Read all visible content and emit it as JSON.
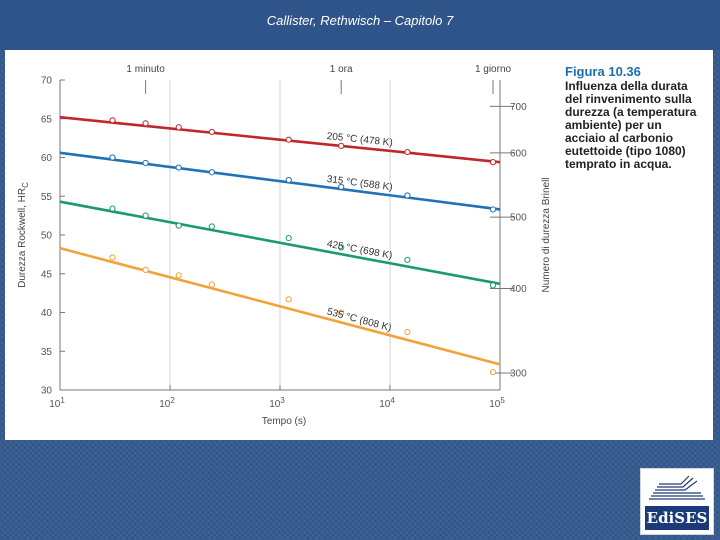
{
  "slide": {
    "title": "Callister, Rethwisch – Capitolo 7",
    "logo_text": "EdiSES"
  },
  "caption": {
    "number": "Figura 10.36",
    "text": "Influenza della durata del rinvenimento sulla durezza (a temperatura ambiente) per un acciaio al carbonio eutettoide (tipo 1080) temprato in acqua."
  },
  "colors": {
    "red": "#c0272d",
    "blue": "#2171b5",
    "green": "#1a9a70",
    "orange": "#f2a23a",
    "axis": "#777777",
    "grid": "#c8c8c8"
  },
  "chart_data": {
    "type": "line",
    "x_scale": "log",
    "xlim": [
      10,
      100000
    ],
    "ylim": [
      30,
      70
    ],
    "xlabel": "Tempo (s)",
    "ylabel": "Durezza Rockwell, HR",
    "ylabel_sub": "C",
    "y2label": "Numero di durezza Brinell",
    "x_tick_bases": [
      "10",
      "10",
      "10",
      "10",
      "10"
    ],
    "x_tick_exps": [
      "1",
      "2",
      "3",
      "4",
      "5"
    ],
    "x_tick_values": [
      10,
      100,
      1000,
      10000,
      100000
    ],
    "y_ticks": [
      30,
      35,
      40,
      45,
      50,
      55,
      60,
      65,
      70
    ],
    "y_tick_labels": [
      "30",
      "35",
      "40",
      "45",
      "50",
      "55",
      "60",
      "65",
      "70"
    ],
    "y2_ticks": [
      {
        "label": "300",
        "hrc": 32.2
      },
      {
        "label": "400",
        "hrc": 43.1
      },
      {
        "label": "500",
        "hrc": 52.3
      },
      {
        "label": "600",
        "hrc": 60.6
      },
      {
        "label": "700",
        "hrc": 66.6
      }
    ],
    "top_markers": [
      {
        "label": "1 minuto",
        "x": 60
      },
      {
        "label": "1 ora",
        "x": 3600
      },
      {
        "label": "1 giorno",
        "x": 86400
      }
    ],
    "series": [
      {
        "name": "205 °C (478 K)",
        "color_key": "red",
        "line": [
          [
            10,
            65.2
          ],
          [
            100000,
            59.4
          ]
        ],
        "points": [
          [
            30,
            64.8
          ],
          [
            60,
            64.4
          ],
          [
            120,
            63.9
          ],
          [
            240,
            63.3
          ],
          [
            1200,
            62.3
          ],
          [
            3600,
            61.5
          ],
          [
            14400,
            60.7
          ],
          [
            86400,
            59.4
          ]
        ]
      },
      {
        "name": "315 °C (588 K)",
        "color_key": "blue",
        "line": [
          [
            10,
            60.6
          ],
          [
            100000,
            53.3
          ]
        ],
        "points": [
          [
            30,
            60.0
          ],
          [
            60,
            59.3
          ],
          [
            120,
            58.7
          ],
          [
            240,
            58.1
          ],
          [
            1200,
            57.1
          ],
          [
            3600,
            56.2
          ],
          [
            14400,
            55.1
          ],
          [
            86400,
            53.3
          ]
        ]
      },
      {
        "name": "425 °C (698 K)",
        "color_key": "green",
        "line": [
          [
            10,
            54.3
          ],
          [
            100000,
            43.7
          ]
        ],
        "points": [
          [
            30,
            53.4
          ],
          [
            60,
            52.5
          ],
          [
            120,
            51.2
          ],
          [
            240,
            51.1
          ],
          [
            1200,
            49.6
          ],
          [
            3600,
            48.4
          ],
          [
            14400,
            46.8
          ],
          [
            86400,
            43.5
          ]
        ]
      },
      {
        "name": "535 °C (808 K)",
        "color_key": "orange",
        "line": [
          [
            10,
            48.3
          ],
          [
            100000,
            33.3
          ]
        ],
        "points": [
          [
            30,
            47.1
          ],
          [
            60,
            45.5
          ],
          [
            120,
            44.8
          ],
          [
            240,
            43.6
          ],
          [
            1200,
            41.7
          ],
          [
            3600,
            40.0
          ],
          [
            14400,
            37.5
          ],
          [
            86400,
            32.3
          ]
        ]
      }
    ]
  }
}
